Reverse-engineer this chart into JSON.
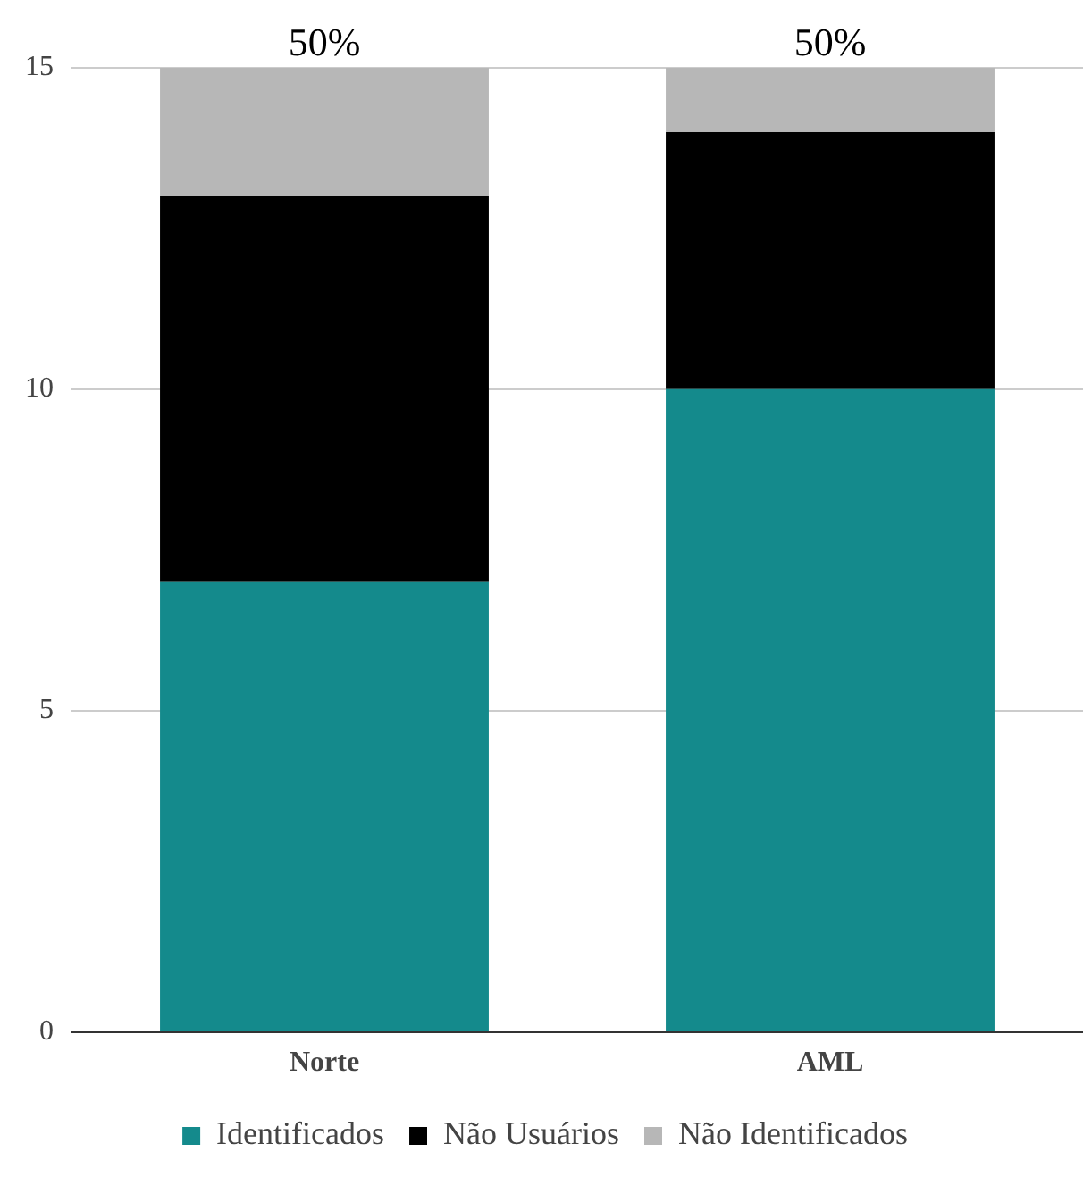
{
  "chart_data": {
    "type": "bar",
    "stacked": true,
    "categories": [
      "Norte",
      "AML"
    ],
    "series": [
      {
        "name": "Identificados",
        "color": "#148a8c",
        "values": [
          7,
          10
        ]
      },
      {
        "name": "Não Usuários",
        "color": "#000000",
        "values": [
          6,
          4
        ]
      },
      {
        "name": "Não Identificados",
        "color": "#b7b7b7",
        "values": [
          2,
          1
        ]
      }
    ],
    "ylim": [
      0,
      15
    ],
    "yticks": [
      0,
      5,
      10,
      15
    ],
    "grid": "y",
    "legend": "bottom",
    "annotations": [
      {
        "text": "50%",
        "x": "Norte",
        "y": 15
      },
      {
        "text": "50%",
        "x": "AML",
        "y": 15
      }
    ]
  }
}
